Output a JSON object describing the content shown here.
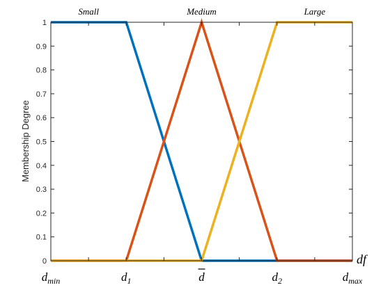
{
  "chart_data": {
    "type": "line",
    "ylabel": "Membership Degree",
    "xlabel": "df",
    "ylim": [
      0,
      1
    ],
    "xlim": [
      0,
      4
    ],
    "grid": false,
    "y_ticks": [
      "0",
      "0.1",
      "0.2",
      "0.3",
      "0.4",
      "0.5",
      "0.6",
      "0.7",
      "0.8",
      "0.9",
      "1"
    ],
    "x_tick_labels": [
      {
        "x": 0,
        "base": "d",
        "sub": "min",
        "overline": false
      },
      {
        "x": 1,
        "base": "d",
        "sub": "1",
        "overline": false
      },
      {
        "x": 2,
        "base": "d",
        "sub": "",
        "overline": true
      },
      {
        "x": 3,
        "base": "d",
        "sub": "2",
        "overline": false
      },
      {
        "x": 4,
        "base": "d",
        "sub": "max",
        "overline": false
      }
    ],
    "series": [
      {
        "name": "Small",
        "color": "#0072BD",
        "x": [
          0,
          1,
          2,
          4
        ],
        "y": [
          1,
          1,
          0,
          0
        ]
      },
      {
        "name": "Medium",
        "color": "#D95319",
        "x": [
          0,
          1,
          2,
          3,
          4
        ],
        "y": [
          0,
          0,
          1,
          0,
          0
        ]
      },
      {
        "name": "Large",
        "color": "#EDB120",
        "x": [
          0,
          2,
          3,
          4
        ],
        "y": [
          0,
          0,
          1,
          1
        ]
      }
    ]
  }
}
